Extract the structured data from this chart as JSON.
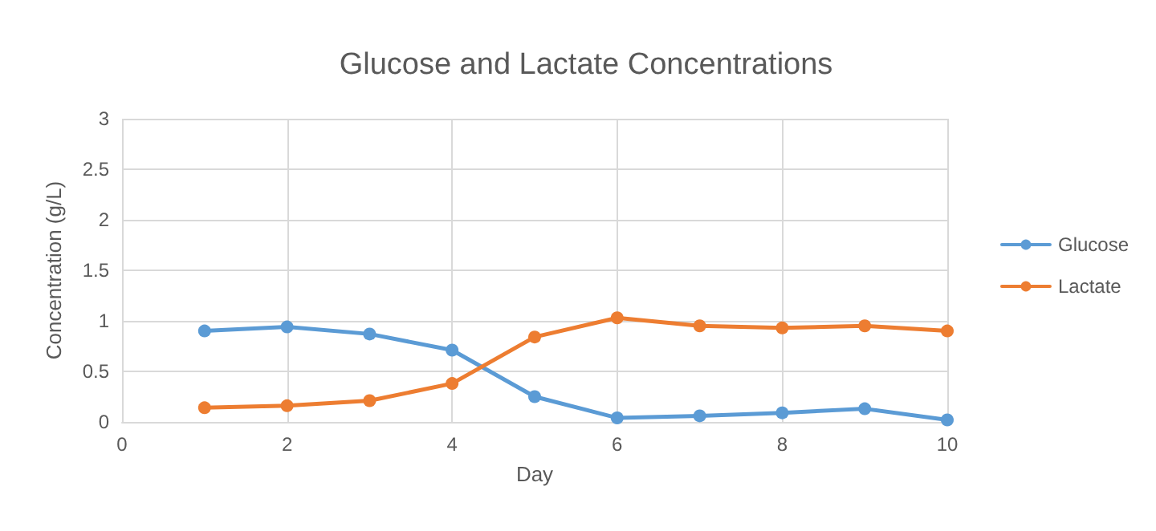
{
  "chart_data": {
    "type": "line",
    "title": "Glucose and Lactate Concentrations",
    "xlabel": "Day",
    "ylabel": "Concentration (g/L)",
    "x": [
      1,
      2,
      3,
      4,
      5,
      6,
      7,
      8,
      9,
      10
    ],
    "series": [
      {
        "name": "Glucose",
        "color": "#5b9bd5",
        "values": [
          0.9,
          0.94,
          0.87,
          0.71,
          0.25,
          0.04,
          0.06,
          0.09,
          0.13,
          0.02
        ]
      },
      {
        "name": "Lactate",
        "color": "#ed7d31",
        "values": [
          0.14,
          0.16,
          0.21,
          0.38,
          0.84,
          1.03,
          0.95,
          0.93,
          0.95,
          0.9
        ]
      }
    ],
    "xlim": [
      0,
      10
    ],
    "xticks": [
      0,
      2,
      4,
      6,
      8,
      10
    ],
    "ylim": [
      0,
      3
    ],
    "yticks": [
      0,
      0.5,
      1,
      1.5,
      2,
      2.5,
      3
    ],
    "grid": true,
    "legend": "right",
    "marker": "circle",
    "line_style": "solid"
  }
}
